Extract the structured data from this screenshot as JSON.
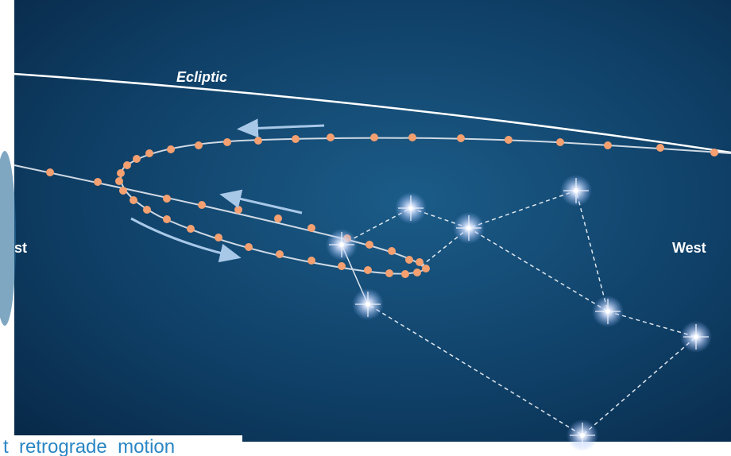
{
  "labels": {
    "ecliptic": "Ecliptic",
    "east": "st",
    "west": "West"
  },
  "caption": "t  retrograde  motion"
}
